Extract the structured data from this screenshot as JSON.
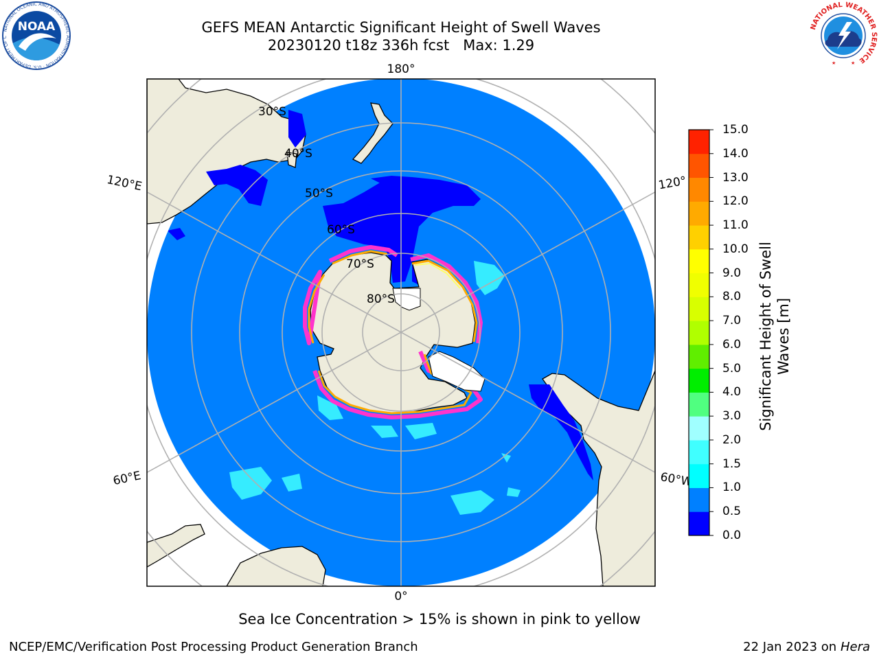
{
  "header": {
    "title_line1": "GEFS MEAN Antarctic Significant Height of Swell Waves",
    "title_line2": "20230120 t18z 336h fcst   Max: 1.29"
  },
  "logos": {
    "left": {
      "text": "NOAA",
      "ring_text": "NATIONAL OCEANIC AND ATMOSPHERIC ADMINISTRATION · U.S. DEPARTMENT OF COMMERCE"
    },
    "right": {
      "ring_text": "NATIONAL WEATHER SERVICE"
    }
  },
  "map": {
    "projection": "south polar stereographic",
    "longitude_labels": {
      "top": "180°",
      "bottom": "0°",
      "left_upper": "120°E",
      "left_lower": "60°E",
      "right_upper": "120°",
      "right_lower": "60°W"
    },
    "latitude_labels": [
      "30°S",
      "40°S",
      "50°S",
      "60°S",
      "70°S",
      "80°S"
    ],
    "colors": {
      "ocean_fill": "#0080ff",
      "land": "#eeecdc",
      "ice_edge": [
        "#ff33cc",
        "#ff8c00",
        "#ffff00"
      ],
      "grid": "#b0b0b0"
    }
  },
  "colorbar": {
    "label": "Significant Height of Swell Waves [m]",
    "ticks": [
      "0.0",
      "0.5",
      "1.0",
      "1.5",
      "2.0",
      "3.0",
      "4.0",
      "5.0",
      "6.0",
      "7.0",
      "8.0",
      "9.0",
      "10.0",
      "11.0",
      "12.0",
      "13.0",
      "14.0",
      "15.0"
    ],
    "colors": [
      "#0000ff",
      "#0080ff",
      "#00ffff",
      "#40ffff",
      "#a0ffff",
      "#50ff80",
      "#00ee00",
      "#60ee00",
      "#b0ff00",
      "#d8ff00",
      "#f0ff00",
      "#ffff00",
      "#ffd000",
      "#ffaa00",
      "#ff8800",
      "#ff5500",
      "#ff2200"
    ]
  },
  "subtitle": "Sea Ice Concentration > 15% is shown in pink to yellow",
  "footer": {
    "left": "NCEP/EMC/Verification Post Processing Product Generation Branch",
    "right_date": "22 Jan 2023 on ",
    "right_machine": "Hera"
  }
}
